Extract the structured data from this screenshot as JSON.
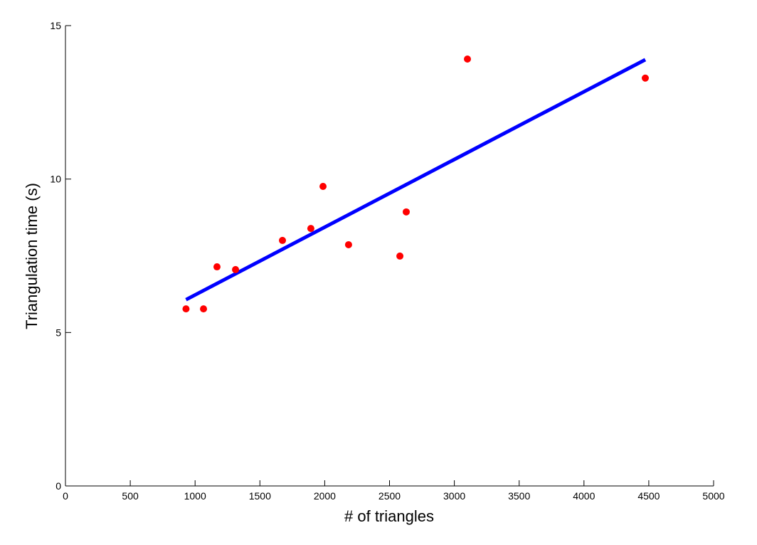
{
  "chart_data": {
    "type": "scatter",
    "x_label": "# of triangles",
    "y_label": "Triangulation time (s)",
    "x": [
      930,
      1065,
      1169,
      1312,
      1674,
      1893,
      1987,
      2184,
      2580,
      2629,
      3101,
      4473
    ],
    "values": [
      5.77,
      5.77,
      7.14,
      7.05,
      8.0,
      8.39,
      9.76,
      7.86,
      7.49,
      8.93,
      13.91,
      13.29
    ],
    "color": "#ff0000",
    "fit": {
      "x": [
        930,
        4473
      ],
      "values": [
        6.07,
        13.89
      ],
      "color": "#0000ff"
    },
    "xlim": [
      0,
      5000
    ],
    "ylim": [
      0,
      15
    ],
    "xticks": [
      0,
      500,
      1000,
      1500,
      2000,
      2500,
      3000,
      3500,
      4000,
      4500,
      5000
    ],
    "yticks": [
      0,
      5,
      10,
      15
    ],
    "grid": false
  }
}
